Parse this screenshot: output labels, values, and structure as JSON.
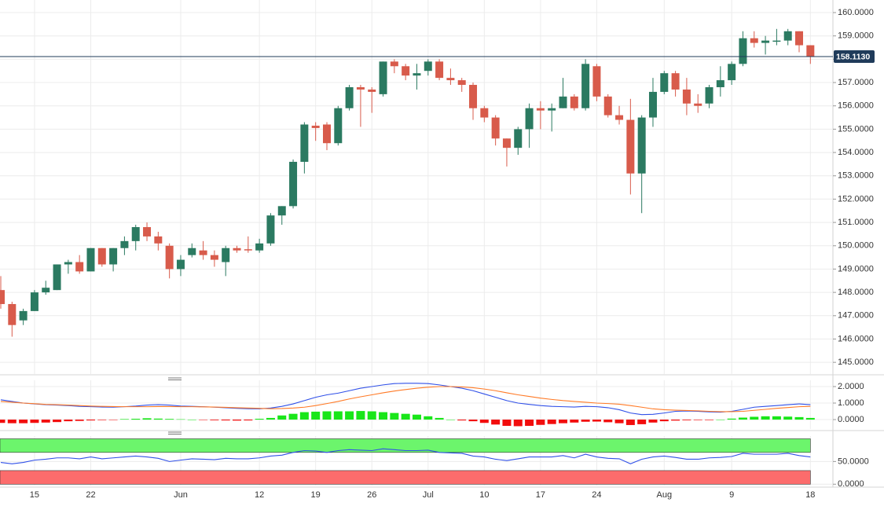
{
  "chart_data": [
    {
      "type": "candlestick",
      "categories": [
        null,
        null,
        null,
        "15",
        null,
        null,
        null,
        null,
        "22",
        null,
        null,
        null,
        null,
        null,
        null,
        null,
        "Jun",
        null,
        null,
        null,
        null,
        null,
        null,
        "12",
        null,
        null,
        null,
        null,
        "19",
        null,
        null,
        null,
        null,
        "26",
        null,
        null,
        null,
        null,
        "Jul",
        null,
        null,
        null,
        null,
        "10",
        null,
        null,
        null,
        null,
        "17",
        null,
        null,
        null,
        null,
        "24",
        null,
        null,
        null,
        null,
        null,
        "Aug",
        null,
        null,
        null,
        null,
        null,
        "9",
        null,
        null,
        null,
        null,
        null,
        null,
        "18"
      ],
      "open": [
        148.1,
        147.5,
        146.8,
        147.2,
        148.0,
        148.1,
        149.2,
        149.3,
        148.9,
        149.9,
        149.2,
        149.9,
        150.2,
        150.8,
        150.4,
        150.0,
        149.0,
        149.6,
        149.8,
        149.6,
        149.3,
        149.9,
        149.85,
        149.8,
        150.1,
        151.3,
        151.7,
        153.6,
        155.15,
        155.2,
        154.4,
        155.9,
        156.8,
        156.7,
        156.5,
        157.9,
        157.7,
        157.3,
        157.5,
        157.9,
        157.2,
        157.1,
        156.9,
        155.9,
        155.5,
        154.6,
        154.2,
        155.0,
        155.9,
        155.8,
        155.9,
        156.4,
        155.9,
        157.7,
        156.4,
        155.6,
        155.4,
        153.1,
        155.5,
        156.6,
        157.4,
        156.7,
        156.1,
        156.1,
        156.8,
        157.1,
        157.8,
        158.9,
        158.7,
        158.75,
        158.8,
        159.2,
        158.6
      ],
      "high": [
        148.7,
        147.6,
        147.3,
        148.1,
        148.5,
        149.2,
        149.4,
        149.6,
        149.9,
        149.9,
        149.9,
        150.4,
        150.9,
        151.0,
        150.6,
        150.1,
        149.6,
        150.1,
        150.2,
        149.8,
        150.0,
        150.0,
        150.4,
        150.3,
        151.4,
        151.7,
        153.7,
        155.3,
        155.3,
        155.3,
        156.0,
        156.9,
        156.9,
        156.8,
        157.9,
        158.0,
        157.8,
        157.8,
        158.0,
        158.0,
        157.6,
        157.2,
        157.0,
        156.0,
        155.6,
        154.6,
        155.1,
        156.1,
        156.2,
        156.1,
        157.2,
        156.5,
        158.0,
        157.8,
        156.5,
        156.0,
        156.3,
        155.6,
        157.2,
        157.5,
        157.5,
        157.2,
        156.5,
        156.9,
        157.7,
        157.9,
        159.2,
        159.2,
        159.0,
        159.3,
        159.3,
        159.2,
        158.6
      ],
      "low": [
        147.3,
        146.1,
        146.6,
        147.2,
        147.9,
        148.1,
        148.8,
        148.8,
        148.9,
        149.1,
        148.9,
        149.6,
        149.8,
        150.2,
        149.8,
        148.6,
        148.7,
        149.5,
        149.4,
        149.1,
        148.7,
        149.7,
        149.7,
        149.7,
        150.0,
        150.9,
        151.6,
        153.1,
        154.5,
        154.1,
        154.3,
        155.8,
        155.1,
        155.7,
        156.4,
        157.4,
        157.1,
        156.7,
        157.3,
        157.1,
        156.9,
        156.6,
        155.4,
        155.3,
        154.3,
        153.4,
        153.9,
        154.2,
        155.0,
        154.9,
        155.9,
        155.8,
        155.8,
        156.2,
        155.5,
        155.2,
        152.2,
        151.4,
        155.1,
        156.5,
        156.4,
        155.6,
        155.7,
        155.9,
        156.4,
        156.9,
        157.7,
        158.5,
        158.2,
        158.6,
        158.6,
        158.3,
        157.8
      ],
      "close": [
        147.5,
        146.6,
        147.2,
        148.0,
        148.2,
        149.2,
        149.3,
        148.9,
        149.9,
        149.2,
        149.9,
        150.2,
        150.8,
        150.4,
        150.1,
        149.0,
        149.4,
        149.9,
        149.6,
        149.4,
        149.9,
        149.8,
        149.8,
        150.1,
        151.3,
        151.7,
        153.6,
        155.2,
        155.05,
        154.4,
        155.9,
        156.8,
        156.7,
        156.6,
        157.9,
        157.7,
        157.3,
        157.4,
        157.9,
        157.2,
        157.1,
        156.9,
        155.9,
        155.5,
        154.6,
        154.2,
        155.0,
        155.9,
        155.8,
        155.9,
        156.4,
        155.9,
        157.8,
        156.4,
        155.6,
        155.4,
        153.1,
        155.5,
        156.6,
        157.4,
        156.7,
        156.1,
        156.0,
        156.8,
        157.1,
        157.8,
        158.9,
        158.7,
        158.8,
        158.8,
        159.2,
        158.6,
        158.113
      ],
      "up_color": "#2b7a61",
      "down_color": "#d85b4b",
      "last": {
        "value": 158.113,
        "label": "158.1130",
        "color": "#1f3b5a"
      },
      "ylim": [
        144.5,
        160.54
      ],
      "yticks": [
        {
          "value": 145,
          "label": "145.0000"
        },
        {
          "value": 146,
          "label": "146.0000"
        },
        {
          "value": 147,
          "label": "147.0000"
        },
        {
          "value": 148,
          "label": "148.0000"
        },
        {
          "value": 149,
          "label": "149.0000"
        },
        {
          "value": 150,
          "label": "150.0000"
        },
        {
          "value": 151,
          "label": "151.0000"
        },
        {
          "value": 152,
          "label": "152.0000"
        },
        {
          "value": 153,
          "label": "153.0000"
        },
        {
          "value": 154,
          "label": "154.0000"
        },
        {
          "value": 155,
          "label": "155.0000"
        },
        {
          "value": 156,
          "label": "156.0000"
        },
        {
          "value": 157,
          "label": "157.0000"
        },
        {
          "value": 158,
          "label": "158.0000"
        },
        {
          "value": 159,
          "label": "159.0000"
        },
        {
          "value": 160,
          "label": "160.0000"
        }
      ],
      "grid": true
    },
    {
      "type": "line",
      "series": [
        {
          "color": "#3050e8",
          "values": [
            1.2,
            1.1,
            1.0,
            0.95,
            0.9,
            0.88,
            0.85,
            0.8,
            0.78,
            0.76,
            0.75,
            0.78,
            0.82,
            0.88,
            0.9,
            0.88,
            0.82,
            0.8,
            0.78,
            0.75,
            0.72,
            0.68,
            0.66,
            0.65,
            0.7,
            0.8,
            0.95,
            1.15,
            1.35,
            1.5,
            1.6,
            1.75,
            1.9,
            2.0,
            2.1,
            2.18,
            2.2,
            2.2,
            2.18,
            2.1,
            2.0,
            1.9,
            1.75,
            1.55,
            1.35,
            1.15,
            1.0,
            0.92,
            0.85,
            0.8,
            0.78,
            0.76,
            0.8,
            0.78,
            0.72,
            0.6,
            0.4,
            0.3,
            0.32,
            0.4,
            0.5,
            0.52,
            0.5,
            0.47,
            0.45,
            0.5,
            0.62,
            0.75,
            0.8,
            0.85,
            0.9,
            0.95,
            0.9
          ]
        },
        {
          "color": "#ff7a26",
          "values": [
            1.1,
            1.05,
            1.0,
            0.96,
            0.92,
            0.9,
            0.88,
            0.85,
            0.82,
            0.8,
            0.79,
            0.78,
            0.78,
            0.78,
            0.79,
            0.79,
            0.78,
            0.78,
            0.77,
            0.76,
            0.74,
            0.72,
            0.7,
            0.68,
            0.66,
            0.67,
            0.7,
            0.75,
            0.85,
            0.97,
            1.1,
            1.25,
            1.38,
            1.5,
            1.62,
            1.73,
            1.82,
            1.9,
            1.96,
            2.0,
            2.0,
            1.98,
            1.93,
            1.85,
            1.75,
            1.62,
            1.5,
            1.4,
            1.3,
            1.22,
            1.15,
            1.1,
            1.05,
            1.0,
            0.97,
            0.93,
            0.85,
            0.75,
            0.65,
            0.6,
            0.57,
            0.55,
            0.53,
            0.5,
            0.48,
            0.48,
            0.5,
            0.56,
            0.62,
            0.68,
            0.73,
            0.78,
            0.8
          ]
        }
      ],
      "histogram": {
        "up_color": "#19e619",
        "down_color": "#f20d0d",
        "values": [
          -0.2,
          -0.22,
          -0.22,
          -0.2,
          -0.18,
          -0.15,
          -0.1,
          -0.08,
          -0.05,
          -0.03,
          -0.02,
          0.03,
          0.05,
          0.08,
          0.06,
          0.04,
          0.02,
          0.0,
          -0.02,
          -0.04,
          -0.05,
          -0.06,
          -0.05,
          0.05,
          0.1,
          0.25,
          0.35,
          0.45,
          0.48,
          0.5,
          0.5,
          0.5,
          0.52,
          0.5,
          0.45,
          0.4,
          0.35,
          0.3,
          0.2,
          0.1,
          0.0,
          -0.05,
          -0.1,
          -0.2,
          -0.3,
          -0.38,
          -0.4,
          -0.38,
          -0.32,
          -0.27,
          -0.22,
          -0.18,
          -0.13,
          -0.12,
          -0.16,
          -0.22,
          -0.33,
          -0.28,
          -0.18,
          -0.1,
          -0.06,
          -0.04,
          -0.03,
          -0.03,
          0.0,
          0.06,
          0.12,
          0.17,
          0.2,
          0.2,
          0.18,
          0.15,
          0.1
        ]
      },
      "ylim": [
        -0.57,
        2.38
      ],
      "yticks": [
        {
          "value": 0,
          "label": "0.0000"
        },
        {
          "value": 1,
          "label": "1.0000"
        },
        {
          "value": 2,
          "label": "2.0000"
        }
      ],
      "grid": true
    },
    {
      "type": "line",
      "series": [
        {
          "color": "#3050e8",
          "values": [
            48,
            45,
            48,
            53,
            55,
            58,
            58,
            56,
            60,
            56,
            58,
            60,
            62,
            60,
            57,
            50,
            53,
            56,
            55,
            54,
            57,
            56,
            56,
            58,
            62,
            64,
            70,
            74,
            73,
            70,
            74,
            76,
            75,
            74,
            78,
            76,
            74,
            74,
            75,
            70,
            69,
            68,
            62,
            60,
            55,
            52,
            56,
            60,
            60,
            60,
            63,
            58,
            66,
            60,
            57,
            56,
            45,
            55,
            60,
            62,
            59,
            55,
            55,
            58,
            59,
            61,
            68,
            66,
            66,
            66,
            68,
            63,
            60
          ]
        }
      ],
      "bands": [
        {
          "from": 70,
          "to": 100,
          "color": "#6cf56c"
        },
        {
          "from": 0,
          "to": 30,
          "color": "#fc6c6c"
        }
      ],
      "ylim": [
        -3,
        106
      ],
      "yticks": [
        {
          "value": 0,
          "label": "0.0000"
        },
        {
          "value": 50,
          "label": "50.0000"
        }
      ],
      "grid": true
    }
  ]
}
